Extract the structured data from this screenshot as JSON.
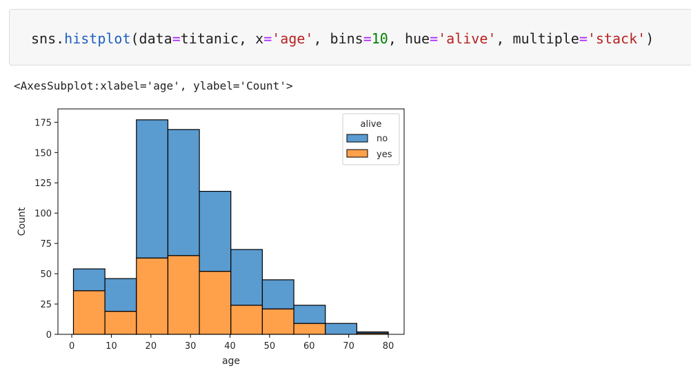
{
  "code": {
    "prefix": "sns.",
    "func": "histplot",
    "open": "(",
    "arg1_name": "data",
    "arg1_value": "titanic, ",
    "arg2_name": "x",
    "arg2_value": "'age'",
    "sep2": ", ",
    "arg3_name": "bins",
    "arg3_value": "10",
    "sep3": ", ",
    "arg4_name": "hue",
    "arg4_value": "'alive'",
    "sep4": ", ",
    "arg5_name": "multiple",
    "arg5_value": "'stack'",
    "close": ")",
    "equals": "="
  },
  "output": {
    "repr": "<AxesSubplot:xlabel='age', ylabel='Count'>"
  },
  "chart_data": {
    "type": "bar",
    "subtype": "stacked histogram",
    "xlabel": "age",
    "ylabel": "Count",
    "bin_edges": [
      0.42,
      8.378,
      16.336,
      24.294,
      32.252,
      40.21,
      48.168,
      56.126,
      64.084,
      72.042,
      80.0
    ],
    "xlim": [
      -3.5,
      84
    ],
    "ylim": [
      0,
      186
    ],
    "xticks": [
      0,
      10,
      20,
      30,
      40,
      50,
      60,
      70,
      80
    ],
    "yticks": [
      0,
      25,
      50,
      75,
      100,
      125,
      150,
      175
    ],
    "series": [
      {
        "name": "yes",
        "values": [
          36,
          19,
          63,
          65,
          52,
          24,
          21,
          9,
          0,
          1
        ]
      },
      {
        "name": "no",
        "values": [
          18,
          27,
          114,
          104,
          66,
          46,
          24,
          15,
          9,
          1
        ]
      }
    ],
    "legend": {
      "title": "alive",
      "entries": [
        "no",
        "yes"
      ],
      "placement": "top-right"
    },
    "colors": {
      "no": "#5a9bd0",
      "yes": "#ffa04b",
      "edge": "#000000"
    },
    "grid": false
  }
}
